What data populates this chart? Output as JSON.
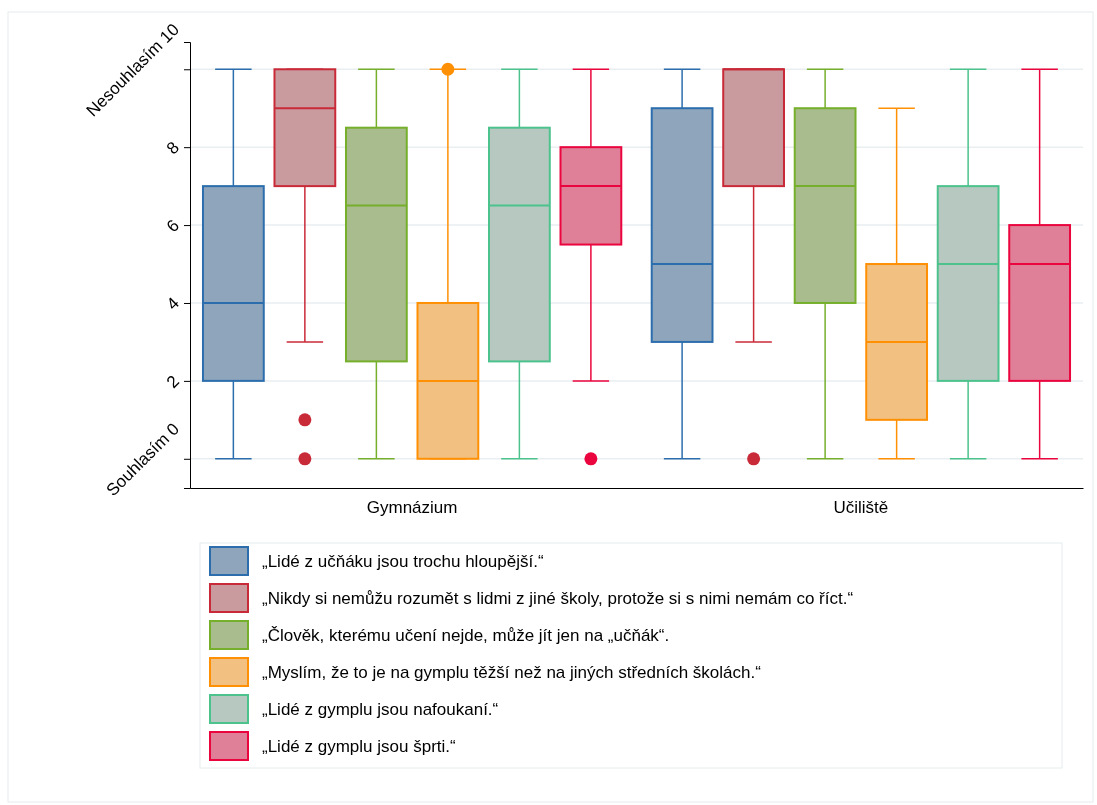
{
  "chart_data": {
    "type": "box",
    "categories": [
      "Gymnázium",
      "Učiliště"
    ],
    "ylim": [
      -0.75,
      10.7
    ],
    "yticks": [
      {
        "value": 0,
        "label": "Souhlasím 0"
      },
      2,
      4,
      6,
      8,
      {
        "value": 10,
        "label": "Nesouhlasím 10"
      }
    ],
    "grid": "y",
    "legend": "bottom",
    "series": [
      {
        "name": "„Lidé z učňáku jsou trochu hloupější.“",
        "color": "#8ea5bb",
        "boxes": [
          {
            "low": 0,
            "q1": 2,
            "median": 4,
            "q3": 7,
            "high": 10
          },
          {
            "low": 0,
            "q1": 3,
            "median": 5,
            "q3": 9,
            "high": 10
          }
        ]
      },
      {
        "name": "„Nikdy si nemůžu rozumět s lidmi z jiné školy, protože si s nimi nemám co říct.“",
        "color": "#c99a9e",
        "boxes": [
          {
            "low": 3,
            "q1": 7,
            "median": 9,
            "q3": 10,
            "high": 10,
            "outliers": [
              1,
              0
            ]
          },
          {
            "low": 3,
            "q1": 7,
            "median": 10,
            "q3": 10,
            "high": 10,
            "outliers": [
              0
            ]
          }
        ]
      },
      {
        "name": "„Člověk, kterému učení nejde, může jít jen na „učňák“.",
        "color": "#a8bc8e",
        "boxes": [
          {
            "low": 0,
            "q1": 2.5,
            "median": 6.5,
            "q3": 8.5,
            "high": 10
          },
          {
            "low": 0,
            "q1": 4,
            "median": 7,
            "q3": 9,
            "high": 10
          }
        ]
      },
      {
        "name": "„Myslím, že to je na gymplu těžší než na jiných středních školách.“",
        "color": "#f2c081",
        "boxes": [
          {
            "low": 0,
            "q1": 0,
            "median": 2,
            "q3": 4,
            "high": 10,
            "outliers": [
              10
            ]
          },
          {
            "low": 0,
            "q1": 1,
            "median": 3,
            "q3": 5,
            "high": 9
          }
        ]
      },
      {
        "name": "„Lidé z gymplu jsou nafoukaní.“",
        "color": "#b6c8c0",
        "boxes": [
          {
            "low": 0,
            "q1": 2.5,
            "median": 6.5,
            "q3": 8.5,
            "high": 10
          },
          {
            "low": 0,
            "q1": 2,
            "median": 5,
            "q3": 7,
            "high": 10
          }
        ]
      },
      {
        "name": "„Lidé z gymplu jsou šprti.“",
        "color": "#e08098",
        "boxes": [
          {
            "low": 2,
            "q1": 5.5,
            "median": 7,
            "q3": 8,
            "high": 10,
            "outliers": [
              0
            ]
          },
          {
            "low": 0,
            "q1": 2,
            "median": 5,
            "q3": 6,
            "high": 10
          }
        ]
      }
    ]
  }
}
